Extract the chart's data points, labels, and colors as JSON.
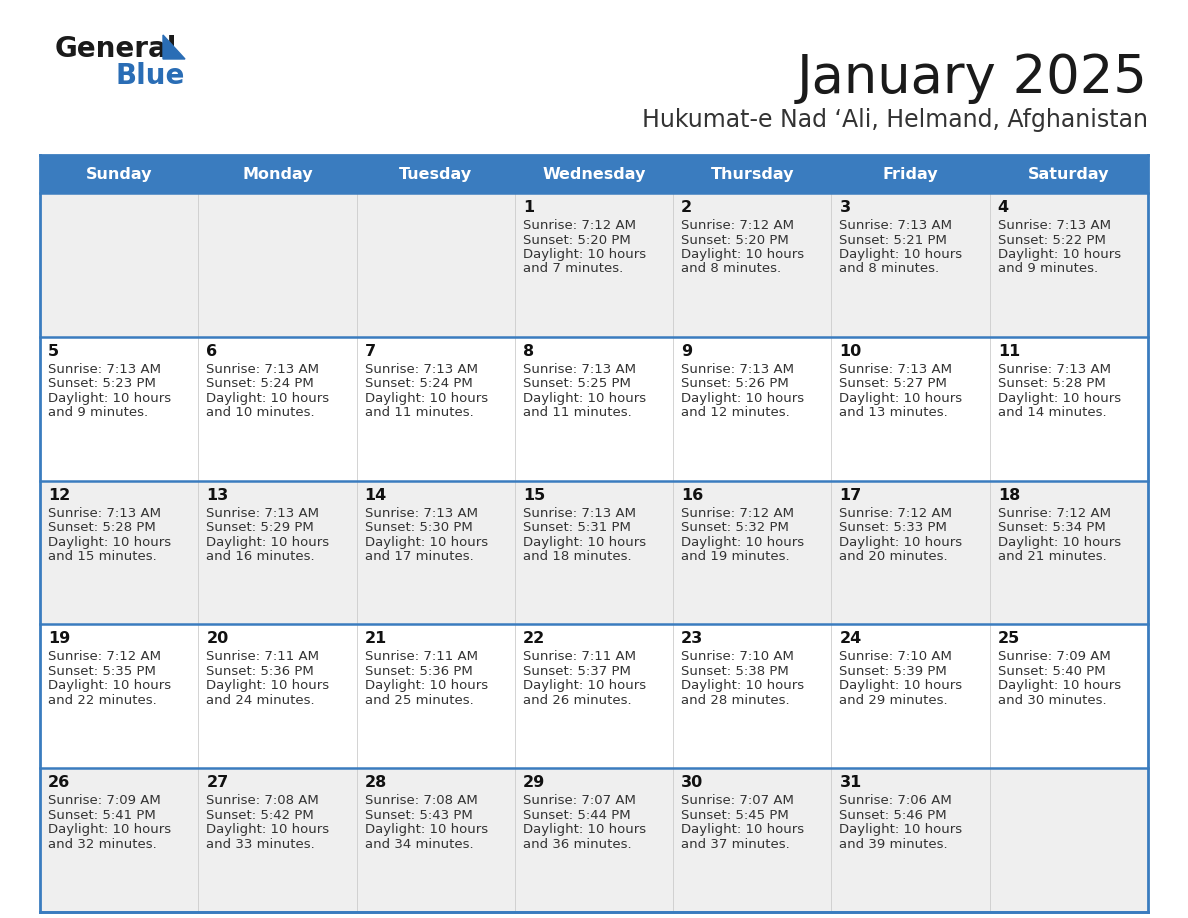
{
  "title": "January 2025",
  "subtitle": "Hukumat-e Nad ‘Ali, Helmand, Afghanistan",
  "days_of_week": [
    "Sunday",
    "Monday",
    "Tuesday",
    "Wednesday",
    "Thursday",
    "Friday",
    "Saturday"
  ],
  "header_bg": "#3a7cbf",
  "header_text": "#ffffff",
  "row_bg_odd": "#efefef",
  "row_bg_even": "#ffffff",
  "cell_border_color": "#3a7cbf",
  "title_color": "#1a1a1a",
  "subtitle_color": "#333333",
  "day_number_color": "#111111",
  "cell_text_color": "#333333",
  "logo_general_color": "#1a1a1a",
  "logo_blue_color": "#2a6db5",
  "logo_triangle_color": "#2a6db5",
  "calendar_data": [
    [
      null,
      null,
      null,
      {
        "day": 1,
        "sunrise": "7:12 AM",
        "sunset": "5:20 PM",
        "daylight": "10 hours",
        "daylight2": "and 7 minutes."
      },
      {
        "day": 2,
        "sunrise": "7:12 AM",
        "sunset": "5:20 PM",
        "daylight": "10 hours",
        "daylight2": "and 8 minutes."
      },
      {
        "day": 3,
        "sunrise": "7:13 AM",
        "sunset": "5:21 PM",
        "daylight": "10 hours",
        "daylight2": "and 8 minutes."
      },
      {
        "day": 4,
        "sunrise": "7:13 AM",
        "sunset": "5:22 PM",
        "daylight": "10 hours",
        "daylight2": "and 9 minutes."
      }
    ],
    [
      {
        "day": 5,
        "sunrise": "7:13 AM",
        "sunset": "5:23 PM",
        "daylight": "10 hours",
        "daylight2": "and 9 minutes."
      },
      {
        "day": 6,
        "sunrise": "7:13 AM",
        "sunset": "5:24 PM",
        "daylight": "10 hours",
        "daylight2": "and 10 minutes."
      },
      {
        "day": 7,
        "sunrise": "7:13 AM",
        "sunset": "5:24 PM",
        "daylight": "10 hours",
        "daylight2": "and 11 minutes."
      },
      {
        "day": 8,
        "sunrise": "7:13 AM",
        "sunset": "5:25 PM",
        "daylight": "10 hours",
        "daylight2": "and 11 minutes."
      },
      {
        "day": 9,
        "sunrise": "7:13 AM",
        "sunset": "5:26 PM",
        "daylight": "10 hours",
        "daylight2": "and 12 minutes."
      },
      {
        "day": 10,
        "sunrise": "7:13 AM",
        "sunset": "5:27 PM",
        "daylight": "10 hours",
        "daylight2": "and 13 minutes."
      },
      {
        "day": 11,
        "sunrise": "7:13 AM",
        "sunset": "5:28 PM",
        "daylight": "10 hours",
        "daylight2": "and 14 minutes."
      }
    ],
    [
      {
        "day": 12,
        "sunrise": "7:13 AM",
        "sunset": "5:28 PM",
        "daylight": "10 hours",
        "daylight2": "and 15 minutes."
      },
      {
        "day": 13,
        "sunrise": "7:13 AM",
        "sunset": "5:29 PM",
        "daylight": "10 hours",
        "daylight2": "and 16 minutes."
      },
      {
        "day": 14,
        "sunrise": "7:13 AM",
        "sunset": "5:30 PM",
        "daylight": "10 hours",
        "daylight2": "and 17 minutes."
      },
      {
        "day": 15,
        "sunrise": "7:13 AM",
        "sunset": "5:31 PM",
        "daylight": "10 hours",
        "daylight2": "and 18 minutes."
      },
      {
        "day": 16,
        "sunrise": "7:12 AM",
        "sunset": "5:32 PM",
        "daylight": "10 hours",
        "daylight2": "and 19 minutes."
      },
      {
        "day": 17,
        "sunrise": "7:12 AM",
        "sunset": "5:33 PM",
        "daylight": "10 hours",
        "daylight2": "and 20 minutes."
      },
      {
        "day": 18,
        "sunrise": "7:12 AM",
        "sunset": "5:34 PM",
        "daylight": "10 hours",
        "daylight2": "and 21 minutes."
      }
    ],
    [
      {
        "day": 19,
        "sunrise": "7:12 AM",
        "sunset": "5:35 PM",
        "daylight": "10 hours",
        "daylight2": "and 22 minutes."
      },
      {
        "day": 20,
        "sunrise": "7:11 AM",
        "sunset": "5:36 PM",
        "daylight": "10 hours",
        "daylight2": "and 24 minutes."
      },
      {
        "day": 21,
        "sunrise": "7:11 AM",
        "sunset": "5:36 PM",
        "daylight": "10 hours",
        "daylight2": "and 25 minutes."
      },
      {
        "day": 22,
        "sunrise": "7:11 AM",
        "sunset": "5:37 PM",
        "daylight": "10 hours",
        "daylight2": "and 26 minutes."
      },
      {
        "day": 23,
        "sunrise": "7:10 AM",
        "sunset": "5:38 PM",
        "daylight": "10 hours",
        "daylight2": "and 28 minutes."
      },
      {
        "day": 24,
        "sunrise": "7:10 AM",
        "sunset": "5:39 PM",
        "daylight": "10 hours",
        "daylight2": "and 29 minutes."
      },
      {
        "day": 25,
        "sunrise": "7:09 AM",
        "sunset": "5:40 PM",
        "daylight": "10 hours",
        "daylight2": "and 30 minutes."
      }
    ],
    [
      {
        "day": 26,
        "sunrise": "7:09 AM",
        "sunset": "5:41 PM",
        "daylight": "10 hours",
        "daylight2": "and 32 minutes."
      },
      {
        "day": 27,
        "sunrise": "7:08 AM",
        "sunset": "5:42 PM",
        "daylight": "10 hours",
        "daylight2": "and 33 minutes."
      },
      {
        "day": 28,
        "sunrise": "7:08 AM",
        "sunset": "5:43 PM",
        "daylight": "10 hours",
        "daylight2": "and 34 minutes."
      },
      {
        "day": 29,
        "sunrise": "7:07 AM",
        "sunset": "5:44 PM",
        "daylight": "10 hours",
        "daylight2": "and 36 minutes."
      },
      {
        "day": 30,
        "sunrise": "7:07 AM",
        "sunset": "5:45 PM",
        "daylight": "10 hours",
        "daylight2": "and 37 minutes."
      },
      {
        "day": 31,
        "sunrise": "7:06 AM",
        "sunset": "5:46 PM",
        "daylight": "10 hours",
        "daylight2": "and 39 minutes."
      },
      null
    ]
  ]
}
